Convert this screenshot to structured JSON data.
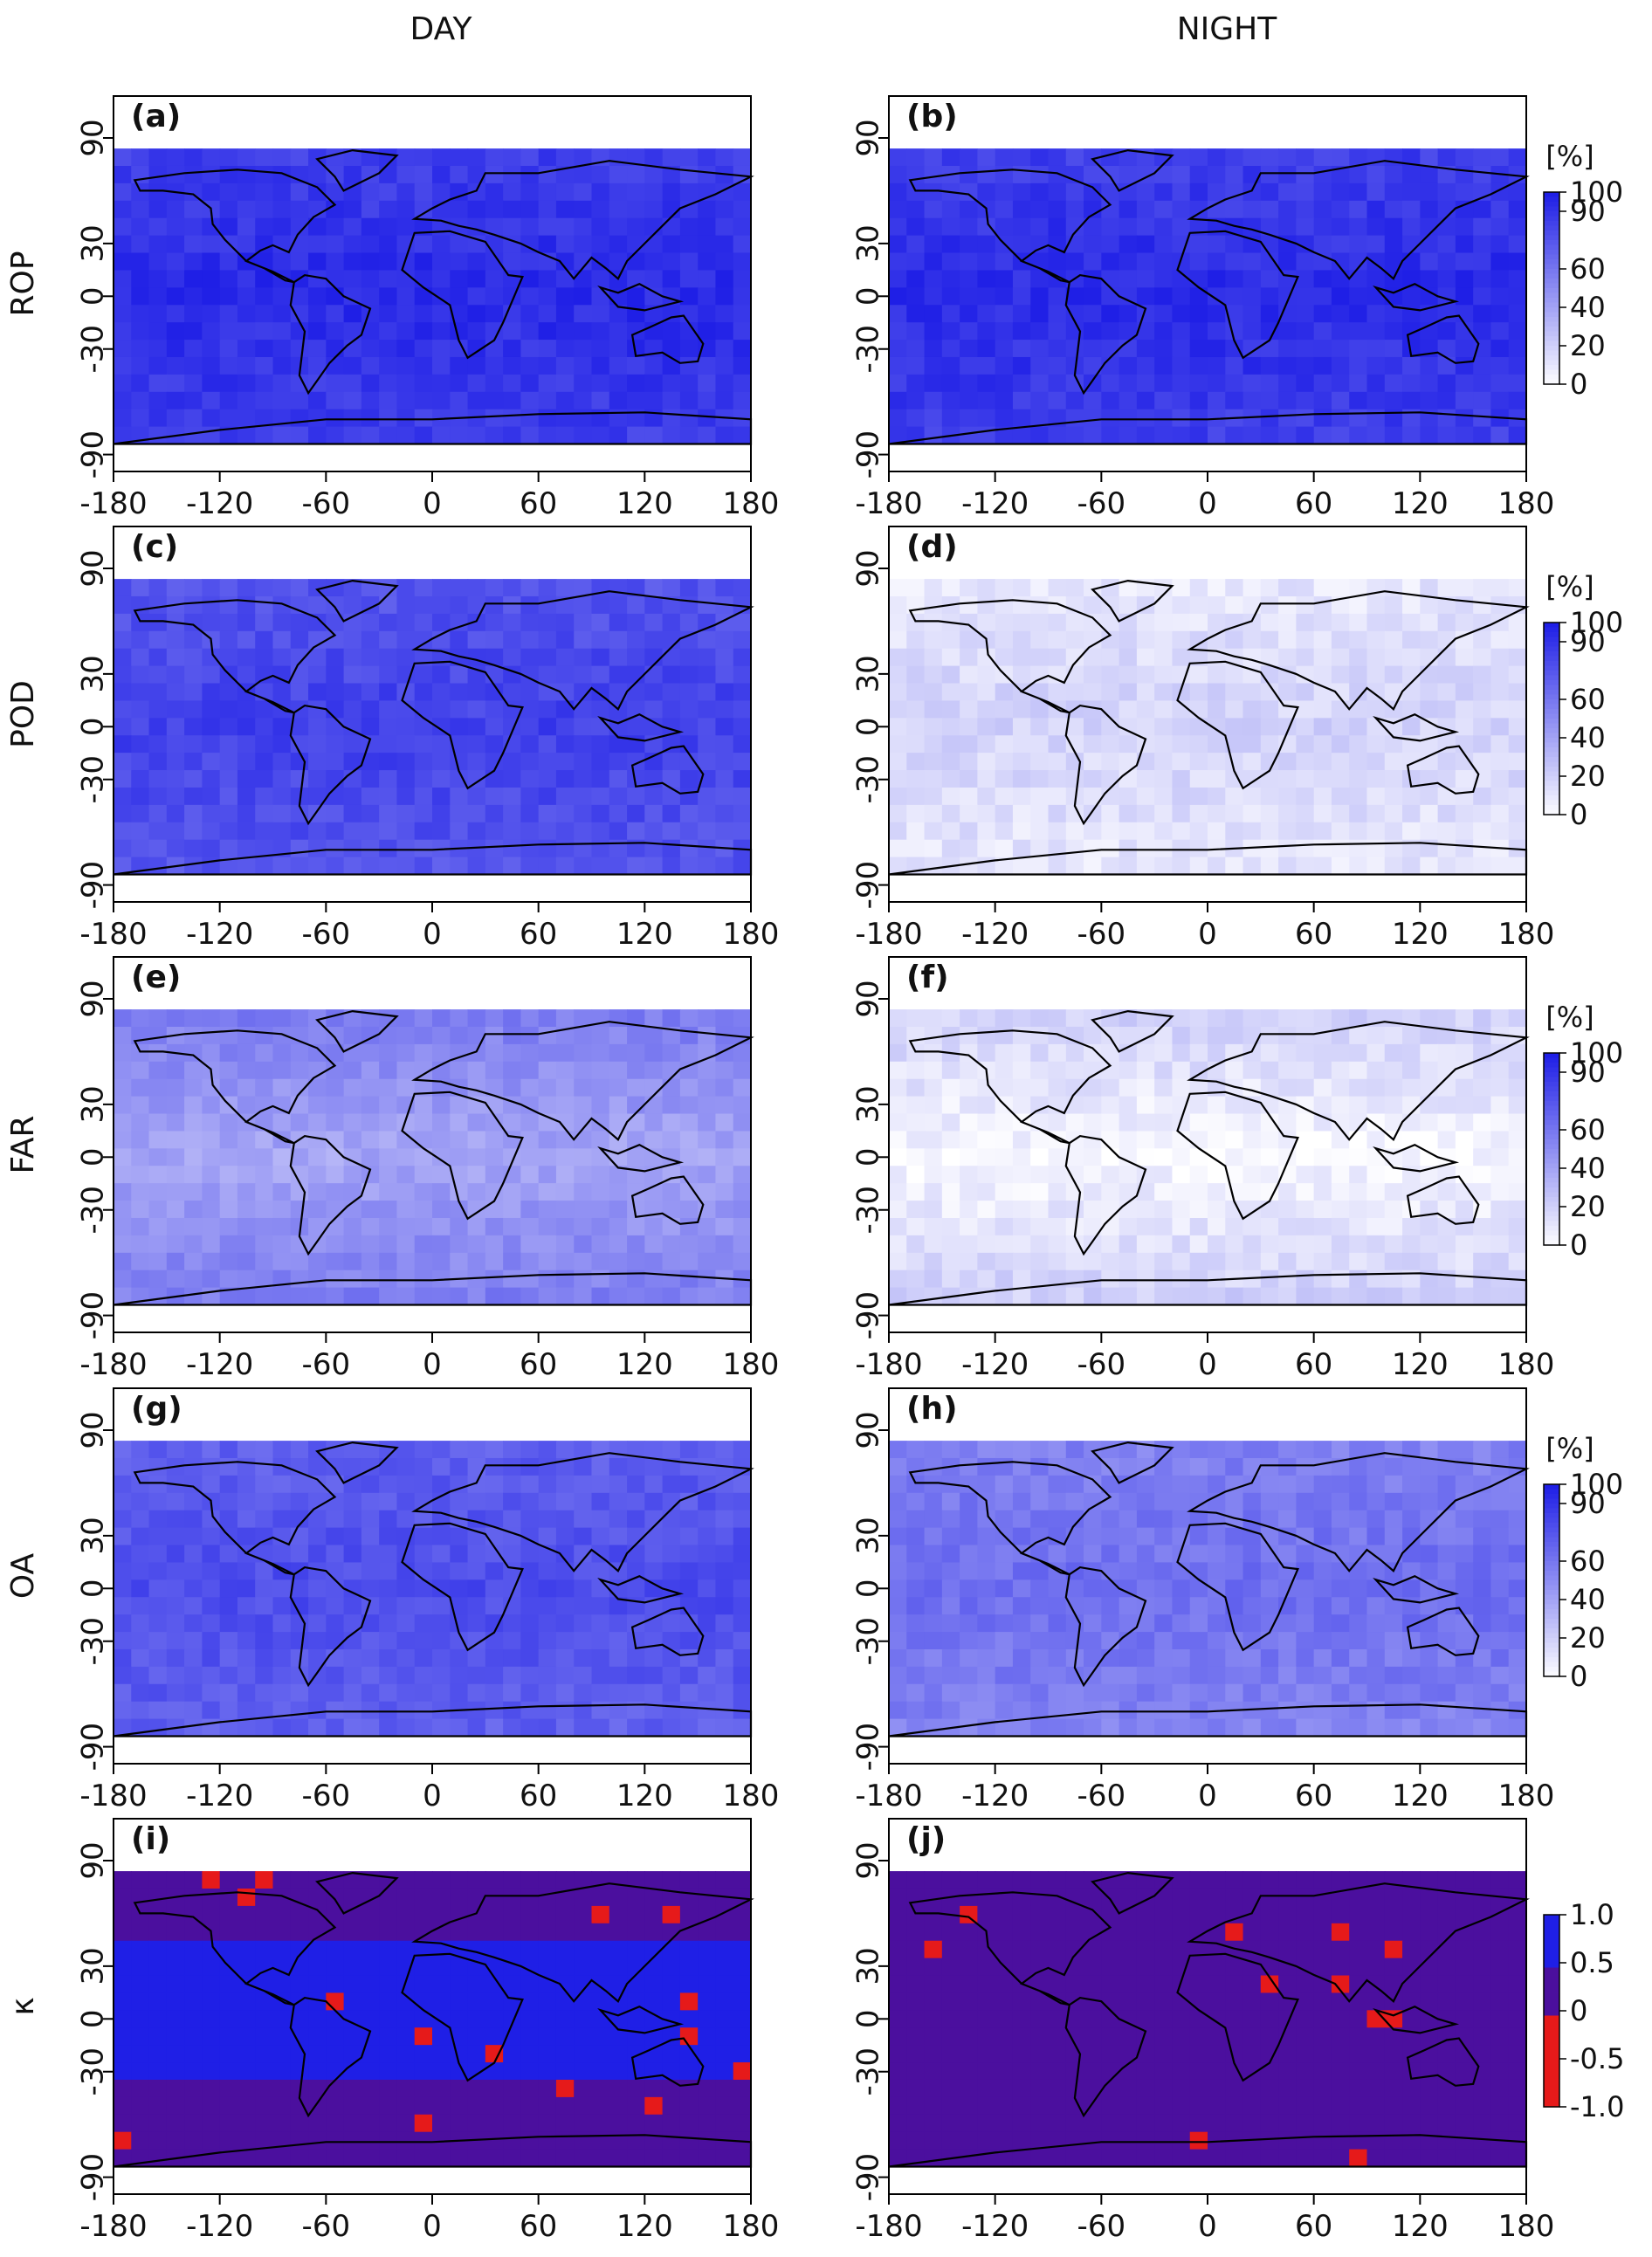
{
  "columns": [
    "DAY",
    "NIGHT"
  ],
  "rows": [
    "ROP",
    "POD",
    "FAR",
    "OA",
    "κ"
  ],
  "x_ticks": [
    "-180",
    "-120",
    "-60",
    "0",
    "60",
    "120",
    "180"
  ],
  "y_ticks": [
    "90",
    "30",
    "0",
    "-30",
    "-90"
  ],
  "colors": {
    "blue": "#1f1fe6",
    "mid_blue": "#6b6bf0",
    "light_blue": "#c8c8f8",
    "purple": "#4b0f9e",
    "red": "#e61a1a",
    "land_outline": "#000000"
  },
  "colorbars": [
    {
      "unit": "[%]",
      "labels": [
        "100",
        "90",
        "60",
        "40",
        "20",
        "0"
      ],
      "scale": "percent"
    },
    {
      "unit": "[%]",
      "labels": [
        "100",
        "90",
        "60",
        "40",
        "20",
        "0"
      ],
      "scale": "percent"
    },
    {
      "unit": "[%]",
      "labels": [
        "100",
        "90",
        "60",
        "40",
        "20",
        "0"
      ],
      "scale": "percent"
    },
    {
      "unit": "[%]",
      "labels": [
        "100",
        "90",
        "60",
        "40",
        "20",
        "0"
      ],
      "scale": "percent"
    },
    {
      "unit": "",
      "labels": [
        "1.0",
        "0.5",
        "0",
        "-0.5",
        "-1.0"
      ],
      "scale": "kappa"
    }
  ],
  "chart_data": {
    "type": "heatmap",
    "x_range": [
      -180,
      180
    ],
    "y_range": [
      -90,
      90
    ],
    "panels": [
      {
        "tag": "(a)",
        "column": "DAY",
        "row": "ROP",
        "typical_value": 95,
        "unit": "%"
      },
      {
        "tag": "(b)",
        "column": "NIGHT",
        "row": "ROP",
        "typical_value": 95,
        "unit": "%"
      },
      {
        "tag": "(c)",
        "column": "DAY",
        "row": "POD",
        "typical_value": 85,
        "unit": "%"
      },
      {
        "tag": "(d)",
        "column": "NIGHT",
        "row": "POD",
        "typical_value": 20,
        "unit": "%"
      },
      {
        "tag": "(e)",
        "column": "DAY",
        "row": "FAR",
        "typical_value": 40,
        "unit": "%"
      },
      {
        "tag": "(f)",
        "column": "NIGHT",
        "row": "FAR",
        "typical_value": 3,
        "unit": "%"
      },
      {
        "tag": "(g)",
        "column": "DAY",
        "row": "OA",
        "typical_value": 80,
        "unit": "%"
      },
      {
        "tag": "(h)",
        "column": "NIGHT",
        "row": "OA",
        "typical_value": 65,
        "unit": "%"
      },
      {
        "tag": "(i)",
        "column": "DAY",
        "row": "κ",
        "typical_value": 0.6,
        "unit": ""
      },
      {
        "tag": "(j)",
        "column": "NIGHT",
        "row": "κ",
        "typical_value": 0.2,
        "unit": ""
      }
    ]
  }
}
